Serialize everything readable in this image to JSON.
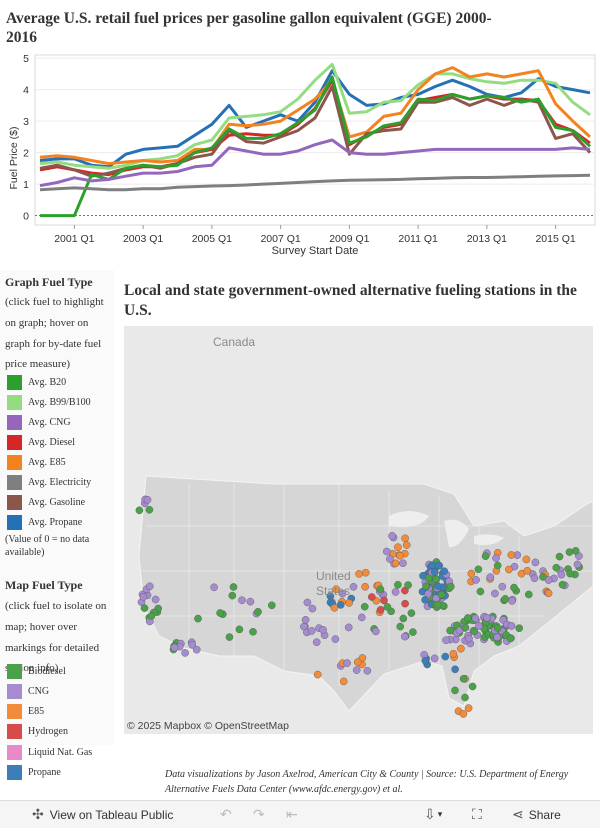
{
  "line_chart": {
    "title": "Average U.S. retail fuel prices per gasoline gallon equivalent (GGE) 2000- 2016",
    "chart_data": {
      "type": "line",
      "xlabel": "Survey Start Date",
      "ylabel": "Fuel Price ($)",
      "x": [
        "2000 Q1",
        "2000 Q3",
        "2001 Q1",
        "2001 Q3",
        "2002 Q1",
        "2002 Q3",
        "2003 Q1",
        "2003 Q3",
        "2004 Q1",
        "2004 Q3",
        "2005 Q1",
        "2005 Q3",
        "2006 Q1",
        "2006 Q3",
        "2007 Q1",
        "2007 Q3",
        "2008 Q1",
        "2008 Q3",
        "2009 Q1",
        "2009 Q3",
        "2010 Q1",
        "2010 Q3",
        "2011 Q1",
        "2011 Q3",
        "2012 Q1",
        "2012 Q3",
        "2013 Q1",
        "2013 Q3",
        "2014 Q1",
        "2014 Q3",
        "2015 Q1",
        "2015 Q3",
        "2016 Q1"
      ],
      "xticks": [
        "2001 Q1",
        "2003 Q1",
        "2005 Q1",
        "2007 Q1",
        "2009 Q1",
        "2011 Q1",
        "2013 Q1",
        "2015 Q1"
      ],
      "yticks": [
        "0",
        "1",
        "2",
        "3",
        "4",
        "5"
      ],
      "ylim": [
        -0.3,
        5.1
      ],
      "series": [
        {
          "name": "Avg. Propane",
          "color": "#2670b6",
          "values": [
            1.75,
            1.8,
            1.8,
            1.6,
            1.55,
            1.95,
            2.1,
            2.15,
            2.2,
            2.55,
            2.9,
            3.5,
            2.8,
            3.0,
            3.2,
            3.0,
            3.6,
            4.6,
            3.85,
            3.5,
            3.55,
            3.75,
            3.85,
            4.1,
            4.3,
            4.1,
            3.85,
            3.75,
            3.9,
            4.35,
            4.1,
            4.0,
            3.9
          ]
        },
        {
          "name": "Avg. B99/B100",
          "color": "#93dc82",
          "values": [
            1.65,
            1.7,
            1.6,
            1.55,
            1.5,
            1.6,
            1.75,
            1.8,
            1.9,
            2.25,
            2.4,
            3.1,
            3.15,
            3.2,
            3.3,
            3.7,
            4.3,
            4.8,
            3.25,
            3.3,
            3.6,
            3.65,
            4.15,
            4.5,
            4.5,
            4.35,
            4.25,
            4.2,
            4.3,
            4.3,
            4.2,
            3.6,
            3.2
          ]
        },
        {
          "name": "Avg. E85",
          "color": "#f4821f",
          "values": [
            1.85,
            1.9,
            1.85,
            1.75,
            1.65,
            1.7,
            1.75,
            1.7,
            1.75,
            2.1,
            2.1,
            2.9,
            2.85,
            2.9,
            3.0,
            3.35,
            3.7,
            4.3,
            2.5,
            2.65,
            3.15,
            3.25,
            4.0,
            4.5,
            4.7,
            4.4,
            4.5,
            4.4,
            4.5,
            4.6,
            3.55,
            3.0,
            2.5
          ]
        },
        {
          "name": "Avg. Diesel",
          "color": "#d62728",
          "values": [
            1.45,
            1.55,
            1.45,
            1.35,
            1.3,
            1.45,
            1.55,
            1.55,
            1.65,
            2.0,
            2.1,
            2.55,
            2.6,
            2.55,
            2.55,
            2.9,
            3.4,
            4.3,
            2.25,
            2.55,
            2.8,
            2.9,
            3.65,
            3.75,
            3.85,
            3.7,
            3.8,
            3.7,
            3.7,
            3.65,
            2.9,
            2.7,
            2.3
          ]
        },
        {
          "name": "Avg. Gasoline",
          "color": "#8c564b",
          "values": [
            1.5,
            1.6,
            1.45,
            1.25,
            1.35,
            1.5,
            1.6,
            1.5,
            1.65,
            1.85,
            1.95,
            2.7,
            2.35,
            2.3,
            2.5,
            2.7,
            3.1,
            4.1,
            1.95,
            2.6,
            2.7,
            2.75,
            3.6,
            3.6,
            3.75,
            3.5,
            3.7,
            3.5,
            3.7,
            3.6,
            2.45,
            2.6,
            2.0
          ]
        },
        {
          "name": "Avg. B20",
          "color": "#2ca02c",
          "values": [
            0,
            0,
            0,
            1.3,
            1.15,
            1.5,
            1.6,
            1.55,
            1.6,
            2.0,
            2.15,
            2.75,
            2.45,
            2.45,
            2.6,
            2.95,
            3.35,
            4.4,
            2.3,
            2.5,
            2.85,
            2.95,
            3.7,
            3.65,
            3.85,
            3.7,
            3.8,
            3.75,
            3.6,
            3.7,
            2.8,
            2.7,
            2.2
          ]
        },
        {
          "name": "Avg. CNG",
          "color": "#9467bd",
          "values": [
            0.95,
            1.05,
            1.2,
            1.1,
            1.15,
            1.25,
            1.35,
            1.35,
            1.4,
            1.55,
            1.6,
            2.15,
            2.05,
            1.95,
            1.95,
            2.05,
            2.25,
            2.4,
            2.0,
            1.95,
            1.95,
            2.0,
            2.05,
            2.1,
            2.1,
            2.1,
            2.1,
            2.1,
            2.1,
            2.1,
            2.1,
            2.15,
            2.1
          ]
        },
        {
          "name": "Avg. Electricity",
          "color": "#7f7f7f",
          "values": [
            0.82,
            0.85,
            0.88,
            0.85,
            0.82,
            0.82,
            0.85,
            0.85,
            0.9,
            0.92,
            0.94,
            0.95,
            0.97,
            1.0,
            1.02,
            1.05,
            1.08,
            1.1,
            1.12,
            1.13,
            1.14,
            1.15,
            1.17,
            1.18,
            1.2,
            1.21,
            1.21,
            1.22,
            1.23,
            1.25,
            1.26,
            1.27,
            1.28
          ]
        }
      ]
    }
  },
  "graph_legend": {
    "heading": "Graph Fuel Type",
    "instructions": "(click fuel to highlight on graph; hover on graph for by-date fuel price measure)",
    "note": "(Value of 0 = no data available)",
    "items": [
      {
        "label": "Avg. B20",
        "color": "#2ca02c"
      },
      {
        "label": "Avg. B99/B100",
        "color": "#93dc82"
      },
      {
        "label": "Avg. CNG",
        "color": "#9467bd"
      },
      {
        "label": "Avg. Diesel",
        "color": "#d62728"
      },
      {
        "label": "Avg. E85",
        "color": "#f4821f"
      },
      {
        "label": "Avg. Electricity",
        "color": "#7f7f7f"
      },
      {
        "label": "Avg. Gasoline",
        "color": "#8c564b"
      },
      {
        "label": "Avg. Propane",
        "color": "#2670b6"
      }
    ]
  },
  "map_legend": {
    "heading": "Map Fuel Type",
    "instructions": "(click fuel to isolate on map; hover over markings for detailed station info)",
    "items": [
      {
        "label": "Biodiesel",
        "color": "#4aa14a"
      },
      {
        "label": "CNG",
        "color": "#a58bd0"
      },
      {
        "label": "E85",
        "color": "#f28b3a"
      },
      {
        "label": "Hydrogen",
        "color": "#d84b4b"
      },
      {
        "label": "Liquid Nat. Gas",
        "color": "#e88ac8"
      },
      {
        "label": "Propane",
        "color": "#3c7fb8"
      }
    ]
  },
  "map": {
    "title": "Local and state government-owned alternative fueling stations in the U.S.",
    "label_canada": "Canada",
    "label_us_1": "United",
    "label_us_2": "States",
    "attribution": "© 2025 Mapbox  © OpenStreetMap"
  },
  "credits": "Data visualizations by Jason Axelrod, American City & County  |  Source: U.S. Department of Energy Alternative Fuels Data Center (www.afdc.energy.gov) et al.",
  "toolbar": {
    "view_label": "View on Tableau Public",
    "share_label": "Share"
  }
}
